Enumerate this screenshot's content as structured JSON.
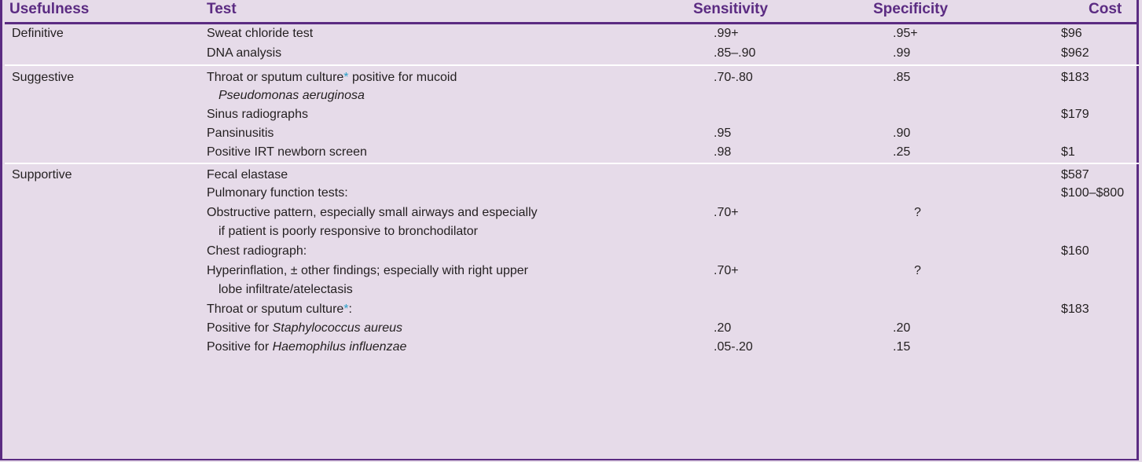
{
  "headers": {
    "usefulness": "Usefulness",
    "test": "Test",
    "sensitivity": "Sensitivity",
    "specificity": "Specificity",
    "cost": "Cost"
  },
  "rows": [
    {
      "usefulness": "Definitive",
      "test": "Sweat chloride test",
      "sensitivity": ".99+",
      "specificity": ".95+",
      "cost": "$96"
    },
    {
      "usefulness": "",
      "test": "DNA analysis",
      "sensitivity": ".85–.90",
      "specificity": ".99",
      "cost": "$962"
    },
    {
      "usefulness": "Suggestive",
      "test_prefix": "Throat or sputum culture",
      "test_asterisk": "*",
      "test_suffix": " positive for mucoid",
      "sensitivity": ".70-.80",
      "specificity": ".85",
      "cost": "$183"
    },
    {
      "test_cont_italic": "Pseudomonas aeruginosa"
    },
    {
      "test": "Sinus radiographs",
      "cost": "$179"
    },
    {
      "test": "Pansinusitis",
      "sensitivity": ".95",
      "specificity": ".90"
    },
    {
      "test": "Positive IRT newborn screen",
      "sensitivity": ".98",
      "specificity": ".25",
      "cost": "$1"
    },
    {
      "usefulness": "Supportive",
      "test": "Fecal elastase",
      "cost": "$587"
    },
    {
      "test": "Pulmonary function tests:",
      "cost": "$100–$800"
    },
    {
      "test": "Obstructive pattern, especially small airways and especially",
      "sensitivity": ".70+",
      "specificity": "?"
    },
    {
      "test_cont": "if patient is poorly responsive to bronchodilator"
    },
    {
      "test": "Chest radiograph:",
      "cost": "$160"
    },
    {
      "test": "Hyperinflation, ± other findings; especially with right upper",
      "sensitivity": ".70+",
      "specificity": "?"
    },
    {
      "test_cont": "lobe infiltrate/atelectasis"
    },
    {
      "test_prefix": "Throat or sputum culture",
      "test_asterisk": "*",
      "test_suffix": ":",
      "cost": "$183"
    },
    {
      "test_prefix": "Positive for ",
      "test_italic": "Staphylococcus aureus",
      "sensitivity": ".20",
      "specificity": ".20"
    },
    {
      "test_prefix": "Positive for ",
      "test_italic": "Haemophilus influenzae",
      "sensitivity": ".05-.20",
      "specificity": ".15"
    }
  ],
  "colors": {
    "accent": "#5b2b82",
    "background": "#e6dbe9",
    "asterisk": "#2ba0c8"
  }
}
